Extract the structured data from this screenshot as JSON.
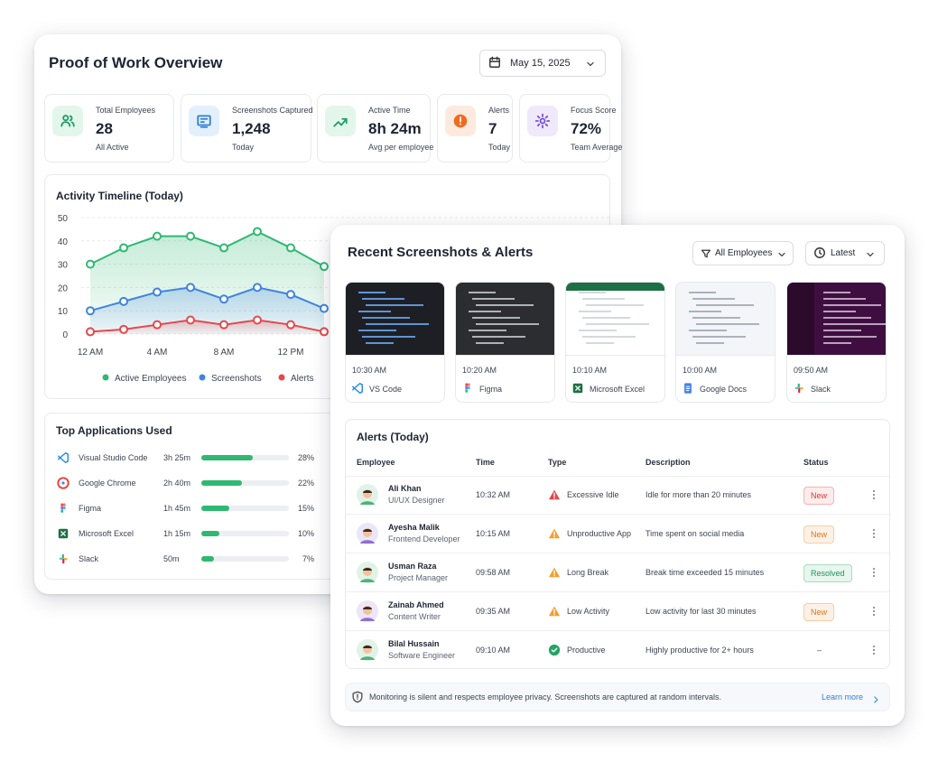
{
  "overview": {
    "title": "Proof of Work Overview",
    "date": "May 15, 2025",
    "stats": [
      {
        "label": "Total Employees",
        "value": "28",
        "note": "All Active"
      },
      {
        "label": "Screenshots Captured",
        "value": "1,248",
        "note": "Today"
      },
      {
        "label": "Active Time",
        "value": "8h 24m",
        "note": "Avg per employee"
      },
      {
        "label": "Alerts",
        "value": "7",
        "note": "Today"
      },
      {
        "label": "Focus Score",
        "value": "72%",
        "note": "Team Average"
      }
    ]
  },
  "chart_data": {
    "type": "area",
    "title": "Activity Timeline (Today)",
    "categories": [
      "12 AM",
      null,
      "4 AM",
      null,
      "8 AM",
      null,
      "12 PM",
      null
    ],
    "series": [
      {
        "name": "Active Employees",
        "color": "#2fb872",
        "values": [
          30,
          37,
          42,
          42,
          37,
          44,
          37,
          29
        ]
      },
      {
        "name": "Screenshots",
        "color": "#3f83e0",
        "values": [
          10,
          14,
          18,
          20,
          15,
          20,
          17,
          11
        ]
      },
      {
        "name": "Alerts",
        "color": "#e5484d",
        "values": [
          1,
          2,
          4,
          6,
          4,
          6,
          4,
          1
        ]
      }
    ],
    "ylim": [
      0,
      50
    ],
    "yticks": [
      0,
      10,
      20,
      30,
      40,
      50
    ],
    "grid": true,
    "legend": "bottom"
  },
  "apps": {
    "title": "Top Applications Used",
    "items": [
      {
        "name": "Visual Studio Code",
        "time": "3h 25m",
        "share": 28,
        "share_label": "28%"
      },
      {
        "name": "Google Chrome",
        "time": "2h 40m",
        "share": 22,
        "share_label": "22%"
      },
      {
        "name": "Figma",
        "time": "1h 45m",
        "share": 15,
        "share_label": "15%"
      },
      {
        "name": "Microsoft Excel",
        "time": "1h 15m",
        "share": 10,
        "share_label": "10%"
      },
      {
        "name": "Slack",
        "time": "50m",
        "share": 7,
        "share_label": "7%"
      }
    ]
  },
  "recent": {
    "title": "Recent Screenshots & Alerts",
    "filter": "All Employees",
    "sort": "Latest",
    "screenshots": [
      {
        "time": "10:30 AM",
        "app": "VS Code"
      },
      {
        "time": "10:20 AM",
        "app": "Figma"
      },
      {
        "time": "10:10 AM",
        "app": "Microsoft Excel"
      },
      {
        "time": "10:00 AM",
        "app": "Google Docs"
      },
      {
        "time": "09:50 AM",
        "app": "Slack"
      }
    ]
  },
  "alerts": {
    "title": "Alerts (Today)",
    "columns": [
      "Employee",
      "Time",
      "Type",
      "Description",
      "Status"
    ],
    "rows": [
      {
        "name": "Ali Khan",
        "role": "UI/UX Designer",
        "time": "10:32 AM",
        "type": "Excessive Idle",
        "description": "Idle for more than 20 minutes",
        "status": "New"
      },
      {
        "name": "Ayesha Malik",
        "role": "Frontend Developer",
        "time": "10:15 AM",
        "type": "Unproductive App",
        "description": "Time spent on social media",
        "status": "New"
      },
      {
        "name": "Usman Raza",
        "role": "Project Manager",
        "time": "09:58 AM",
        "type": "Long Break",
        "description": "Break time exceeded 15 minutes",
        "status": "Resolved"
      },
      {
        "name": "Zainab Ahmed",
        "role": "Content Writer",
        "time": "09:35 AM",
        "type": "Low Activity",
        "description": "Low activity for last 30 minutes",
        "status": "New"
      },
      {
        "name": "Bilal Hussain",
        "role": "Software Engineer",
        "time": "09:10 AM",
        "type": "Productive",
        "description": "Highly productive for 2+ hours",
        "status": "–"
      }
    ]
  },
  "footer": {
    "notice": "Monitoring is silent and respects employee privacy. Screenshots are captured at random intervals.",
    "link": "Learn more"
  }
}
